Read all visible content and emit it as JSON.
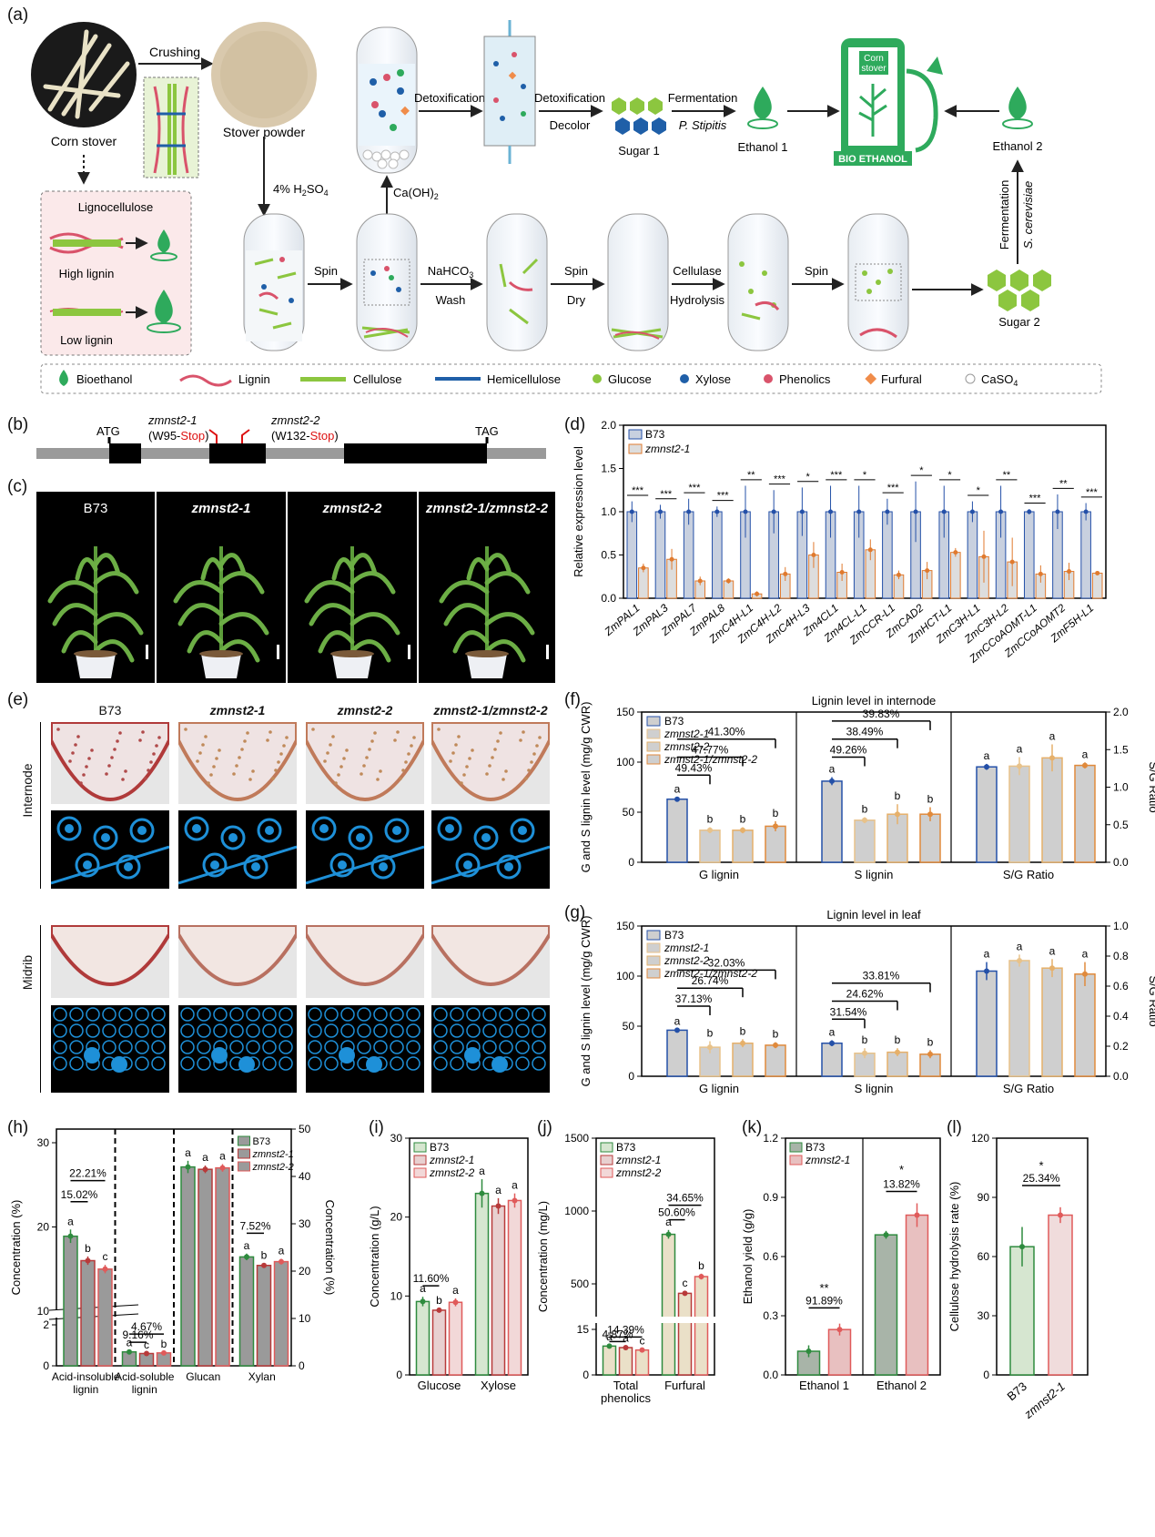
{
  "panel_labels": {
    "a": "(a)",
    "b": "(b)",
    "c": "(c)",
    "d": "(d)",
    "e": "(e)",
    "f": "(f)",
    "g": "(g)",
    "h": "(h)",
    "i": "(i)",
    "j": "(j)",
    "k": "(k)",
    "l": "(l)"
  },
  "panel_a": {
    "corn_stover": "Corn stover",
    "crushing": "Crushing",
    "stover_powder": "Stover powder",
    "acid": "4% H",
    "acid_sub": "2",
    "acid_tail": "SO",
    "acid_sub2": "4",
    "caoh": "Ca(OH)",
    "caoh_sub": "2",
    "detox1": "Detoxification",
    "detox2": "Detoxification",
    "decolor": "Decolor",
    "fermentation1": "Fermentation",
    "pstipitis": "P. Stipitis",
    "sugar1": "Sugar 1",
    "ethanol1": "Ethanol 1",
    "pump_top": "Corn",
    "pump_top2": "stover",
    "bio_ethanol": "BIO ETHANOL",
    "ethanol2": "Ethanol 2",
    "fermentation2": "Fermentation",
    "scerevisiae": "S. cerevisiae",
    "sugar2": "Sugar 2",
    "lignocellulose": "Lignocellulose",
    "high_lignin": "High lignin",
    "low_lignin": "Low lignin",
    "spin1": "Spin",
    "nahco3": "NaHCO",
    "nahco3_sub": "3",
    "wash": "Wash",
    "spin2": "Spin",
    "dry": "Dry",
    "cellulase": "Cellulase",
    "hydrolysis": "Hydrolysis",
    "spin3": "Spin",
    "legend": [
      "Bioethanol",
      "Lignin",
      "Cellulose",
      "Hemicellulose",
      "Glucose",
      "Xylose",
      "Phenolics",
      "Furfural",
      "CaSO"
    ],
    "legend_sub": "4",
    "colors": {
      "green": "#2eaa5c",
      "lignin": "#d9536b",
      "cellulose": "#8cc63f",
      "hemi": "#1f5fa8",
      "glucose": "#8cc63f",
      "xylose": "#1f5fa8",
      "phenolics": "#d9536b",
      "furfural": "#f08c4a"
    }
  },
  "panel_b": {
    "atg": "ATG",
    "tag": "TAG",
    "allele1": "zmnst2-1",
    "mut1_open": "(W95-",
    "mut1_stop": "Stop",
    "mut1_close": ")",
    "allele2": "zmnst2-2",
    "mut2_open": "(W132-",
    "mut2_stop": "Stop",
    "mut2_close": ")"
  },
  "panel_c": {
    "labels": [
      "B73",
      "zmnst2-1",
      "zmnst2-2",
      "zmnst2-1/zmnst2-2"
    ]
  },
  "panel_e": {
    "labels": [
      "B73",
      "zmnst2-1",
      "zmnst2-2",
      "zmnst2-1/zmnst2-2"
    ],
    "rows": [
      "Internode",
      "Midrib"
    ]
  },
  "panel_d": {
    "ylabel": "Relative expression level",
    "ylim": [
      0,
      2.0
    ],
    "yticks": [
      "0.0",
      "0.5",
      "1.0",
      "1.5",
      "2.0"
    ],
    "legend": [
      "B73",
      "zmnst2-1"
    ],
    "colors": {
      "b73": "#2450a8",
      "mut": "#e07a2e"
    },
    "genes": [
      "ZmPAL1",
      "ZmPAL3",
      "ZmPAL7",
      "ZmPAL8",
      "ZmC4H-L1",
      "ZmC4H-L2",
      "ZmC4H-L3",
      "Zm4CL1",
      "Zm4CL-L1",
      "ZmCCR-L1",
      "ZmCAD2",
      "ZmHCT-L1",
      "ZmC3H-L1",
      "ZmC3H-L2",
      "ZmCCoAOMT-L1",
      "ZmCCoAOMT2",
      "ZmF5H-L1"
    ],
    "b73": [
      1,
      1,
      1,
      1,
      1,
      1,
      1,
      1,
      1,
      1,
      1,
      1,
      1,
      1,
      1,
      1,
      1
    ],
    "b73_err": [
      0.12,
      0.08,
      0.15,
      0.06,
      0.3,
      0.25,
      0.28,
      0.3,
      0.3,
      0.15,
      0.35,
      0.3,
      0.12,
      0.3,
      0.03,
      0.2,
      0.1
    ],
    "mut": [
      0.35,
      0.45,
      0.2,
      0.2,
      0.05,
      0.28,
      0.5,
      0.3,
      0.56,
      0.27,
      0.32,
      0.53,
      0.48,
      0.42,
      0.28,
      0.31,
      0.29
    ],
    "mut_err": [
      0.05,
      0.12,
      0.05,
      0.03,
      0.03,
      0.08,
      0.15,
      0.1,
      0.12,
      0.05,
      0.1,
      0.05,
      0.3,
      0.28,
      0.1,
      0.1,
      0.02
    ],
    "sig": [
      "***",
      "***",
      "***",
      "***",
      "**",
      "***",
      "*",
      "***",
      "*",
      "***",
      "*",
      "*",
      "*",
      "**",
      "***",
      "**",
      "***"
    ]
  },
  "panel_f": {
    "title": "Lignin level in internode",
    "ylabel": "G and S lignin level (mg/g CWR)",
    "y2label": "S/G Ratio",
    "ylim": [
      0,
      150
    ],
    "y2lim": [
      0,
      2.0
    ],
    "yticks": [
      "0",
      "50",
      "100",
      "150"
    ],
    "y2ticks": [
      "0.0",
      "0.5",
      "1.0",
      "1.5",
      "2.0"
    ],
    "legend": [
      "B73",
      "zmnst2-1",
      "zmnst2-2",
      "zmnst2-1/zmnst2-2"
    ],
    "groups": [
      "G lignin",
      "S lignin",
      "S/G Ratio"
    ],
    "g": [
      63,
      32,
      32,
      36
    ],
    "g_err": [
      2,
      3,
      3,
      5
    ],
    "s": [
      81,
      42,
      48,
      48
    ],
    "s_err": [
      4,
      3,
      10,
      7
    ],
    "sg": [
      1.27,
      1.28,
      1.39,
      1.29
    ],
    "sg_err": [
      0.04,
      0.12,
      0.18,
      0.04
    ],
    "g_letters": [
      "a",
      "b",
      "b",
      "b"
    ],
    "s_letters": [
      "a",
      "b",
      "b",
      "b"
    ],
    "sg_letters": [
      "a",
      "a",
      "a",
      "a"
    ],
    "g_pct": [
      "49.43%",
      "47.77%",
      "41.30%"
    ],
    "s_pct": [
      "49.26%",
      "38.49%",
      "39.83%"
    ]
  },
  "panel_g": {
    "title": "Lignin level in leaf",
    "ylabel": "G and S lignin level (mg/g CWR)",
    "y2label": "S/G Ratio",
    "ylim": [
      0,
      150
    ],
    "y2lim": [
      0,
      1.0
    ],
    "yticks": [
      "0",
      "50",
      "100",
      "150"
    ],
    "y2ticks": [
      "0.0",
      "0.2",
      "0.4",
      "0.6",
      "0.8",
      "1.0"
    ],
    "legend": [
      "B73",
      "zmnst2-1",
      "zmnst2-2",
      "zmnst2-1/zmnst2-2"
    ],
    "groups": [
      "G lignin",
      "S lignin",
      "S/G Ratio"
    ],
    "g": [
      46,
      29,
      33,
      31
    ],
    "g_err": [
      1,
      6,
      4,
      3
    ],
    "s": [
      33,
      23,
      24,
      22
    ],
    "s_err": [
      3,
      5,
      4,
      4
    ],
    "sg": [
      0.7,
      0.77,
      0.72,
      0.68
    ],
    "sg_err": [
      0.06,
      0.04,
      0.06,
      0.08
    ],
    "g_letters": [
      "a",
      "b",
      "b",
      "b"
    ],
    "s_letters": [
      "a",
      "b",
      "b",
      "b"
    ],
    "sg_letters": [
      "a",
      "a",
      "a",
      "a"
    ],
    "g_pct": [
      "37.13%",
      "26.74%",
      "32.03%"
    ],
    "s_pct": [
      "31.54%",
      "24.62%",
      "33.81%"
    ]
  },
  "panel_h": {
    "ylabel": "Concentration (%)",
    "y2label": "Concentration (%)",
    "legend": [
      "B73",
      "zmnst2-1",
      "zmnst2-2"
    ],
    "categories": [
      "Acid-insoluble lignin",
      "Acid-soluble lignin",
      "Glucan",
      "Xylan"
    ],
    "cat_line1": [
      "Acid-insoluble",
      "Acid-soluble",
      "Glucan",
      "Xylan"
    ],
    "cat_line2": [
      "lignin",
      "lignin",
      "",
      ""
    ],
    "series": {
      "b73": [
        18.9,
        0.68,
        42,
        23
      ],
      "m1": [
        16,
        0.6,
        41.5,
        21.2
      ],
      "m2": [
        15,
        0.63,
        41.8,
        22
      ]
    },
    "err": {
      "b73": [
        0.8,
        0.05,
        1.3,
        0.7
      ],
      "m1": [
        0.5,
        0.03,
        0.8,
        0.4
      ],
      "m2": [
        0.5,
        0.04,
        0.8,
        0.6
      ]
    },
    "letters": [
      [
        "a",
        "b",
        "c"
      ],
      [
        "a",
        "c",
        "b"
      ],
      [
        "a",
        "a",
        "a"
      ],
      [
        "a",
        "b",
        "a"
      ]
    ],
    "pcts": [
      "22.21%",
      "15.02%",
      "4.67%",
      "9.16%",
      "7.52%"
    ],
    "yticks_left": [
      "0",
      "2",
      "10",
      "20",
      "30"
    ],
    "yticks_right": [
      "0",
      "10",
      "20",
      "30",
      "40",
      "50"
    ]
  },
  "panel_i": {
    "ylabel": "Concentration (g/L)",
    "ylim": [
      0,
      30
    ],
    "yticks": [
      "0",
      "10",
      "20",
      "30"
    ],
    "legend": [
      "B73",
      "zmnst2-1",
      "zmnst2-2"
    ],
    "categories": [
      "Glucose",
      "Xylose"
    ],
    "series": {
      "b73": [
        9.3,
        23
      ],
      "m1": [
        8.2,
        21.4
      ],
      "m2": [
        9.2,
        22.1
      ]
    },
    "err": {
      "b73": [
        0.6,
        1.8
      ],
      "m1": [
        0.2,
        1.0
      ],
      "m2": [
        0.5,
        0.9
      ]
    },
    "letters": [
      [
        "a",
        "b",
        "a"
      ],
      [
        "a",
        "a",
        "a"
      ]
    ],
    "pct": "11.60%"
  },
  "panel_j": {
    "ylabel": "Concentration (mg/L)",
    "yticks": [
      "0",
      "15",
      "500",
      "1000",
      "1500"
    ],
    "legend": [
      "B73",
      "zmnst2-1",
      "zmnst2-2"
    ],
    "categories": [
      "Total phenolics",
      "Furfural"
    ],
    "cat_line1": [
      "Total",
      "Furfural"
    ],
    "cat_line2": [
      "phenolics",
      ""
    ],
    "series": {
      "b73": [
        9.5,
        840
      ],
      "m1": [
        9,
        435
      ],
      "m2": [
        8.2,
        550
      ]
    },
    "err": {
      "b73": [
        0.4,
        30
      ],
      "m1": [
        0.4,
        15
      ],
      "m2": [
        0.3,
        20
      ]
    },
    "letters": [
      [
        "a",
        "a",
        "c"
      ],
      [
        "a",
        "c",
        "b"
      ]
    ],
    "pcts": [
      "14.39%",
      "4.87%",
      "34.65%",
      "50.60%"
    ]
  },
  "panel_k": {
    "ylabel": "Ethanol yield (g/g)",
    "ylim": [
      0,
      1.2
    ],
    "yticks": [
      "0.0",
      "0.3",
      "0.6",
      "0.9",
      "1.2"
    ],
    "legend": [
      "B73",
      "zmnst2-1"
    ],
    "categories": [
      "Ethanol 1",
      "Ethanol 2"
    ],
    "series": {
      "b73": [
        0.12,
        0.71
      ],
      "m1": [
        0.23,
        0.81
      ]
    },
    "err": {
      "b73": [
        0.03,
        0.02
      ],
      "m1": [
        0.03,
        0.06
      ]
    },
    "sig": [
      "**",
      "*"
    ],
    "pcts": [
      "91.89%",
      "13.82%"
    ]
  },
  "panel_l": {
    "ylabel": "Cellulose hydrolysis rate (%)",
    "ylim": [
      0,
      120
    ],
    "yticks": [
      "0",
      "30",
      "60",
      "90",
      "120"
    ],
    "categories": [
      "B73",
      "zmnst2-1"
    ],
    "values": [
      65,
      81
    ],
    "err": [
      10,
      4
    ],
    "sig": "*",
    "pct": "25.34%"
  }
}
